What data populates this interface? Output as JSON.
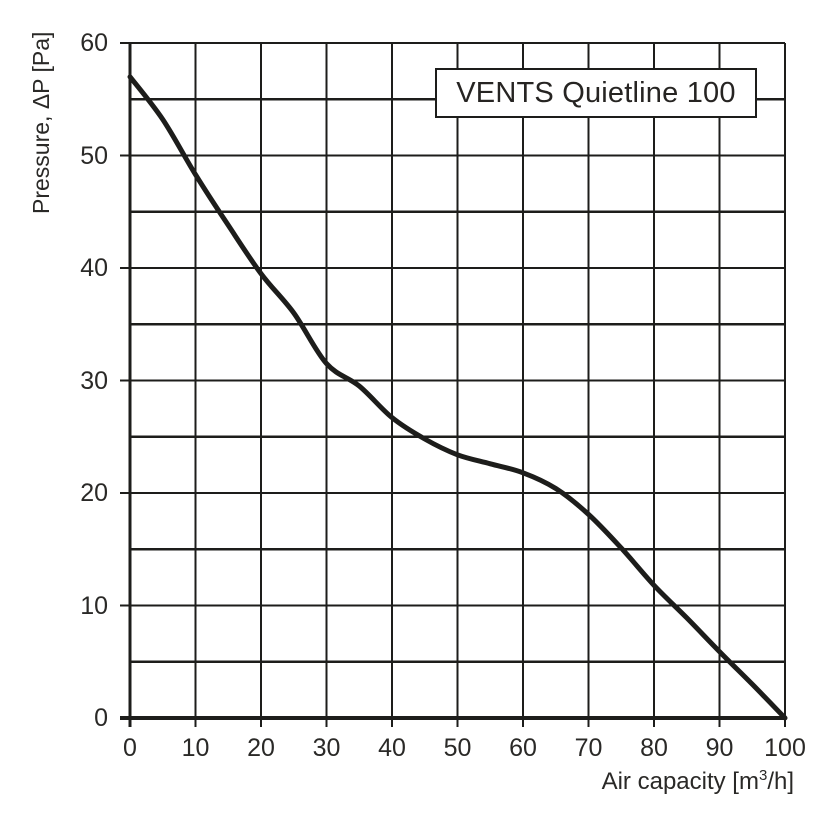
{
  "chart_data": {
    "type": "line",
    "title": "VENTS Quietline 100",
    "ylabel": "Pressure, ΔP [Pa]",
    "xlabel_parts": {
      "prefix": "Air capacity [m",
      "sup": "3",
      "suffix": "/h]"
    },
    "xlim": [
      0,
      100
    ],
    "ylim": [
      0,
      60
    ],
    "xticks": [
      0,
      10,
      20,
      30,
      40,
      50,
      60,
      70,
      80,
      90,
      100
    ],
    "yticks": [
      0,
      10,
      20,
      30,
      40,
      50,
      60
    ],
    "x_grid_step": 10,
    "y_grid_step": 5,
    "grid": true,
    "legend": "none",
    "series": [
      {
        "name": "fan-performance-curve",
        "x": [
          0,
          5,
          10,
          15,
          20,
          25,
          30,
          35,
          40,
          45,
          50,
          55,
          60,
          65,
          70,
          75,
          80,
          85,
          90,
          95,
          100
        ],
        "y": [
          57,
          53.2,
          48.3,
          43.8,
          39.5,
          36,
          31.5,
          29.5,
          26.7,
          24.8,
          23.4,
          22.6,
          21.8,
          20.4,
          18.1,
          15.1,
          11.8,
          8.9,
          5.9,
          3,
          0
        ]
      }
    ],
    "colors": {
      "curve": "#1d1d1b",
      "grid": "#1d1d1b",
      "axis": "#1d1d1b",
      "text": "#2a2927",
      "background": "#ffffff"
    }
  }
}
